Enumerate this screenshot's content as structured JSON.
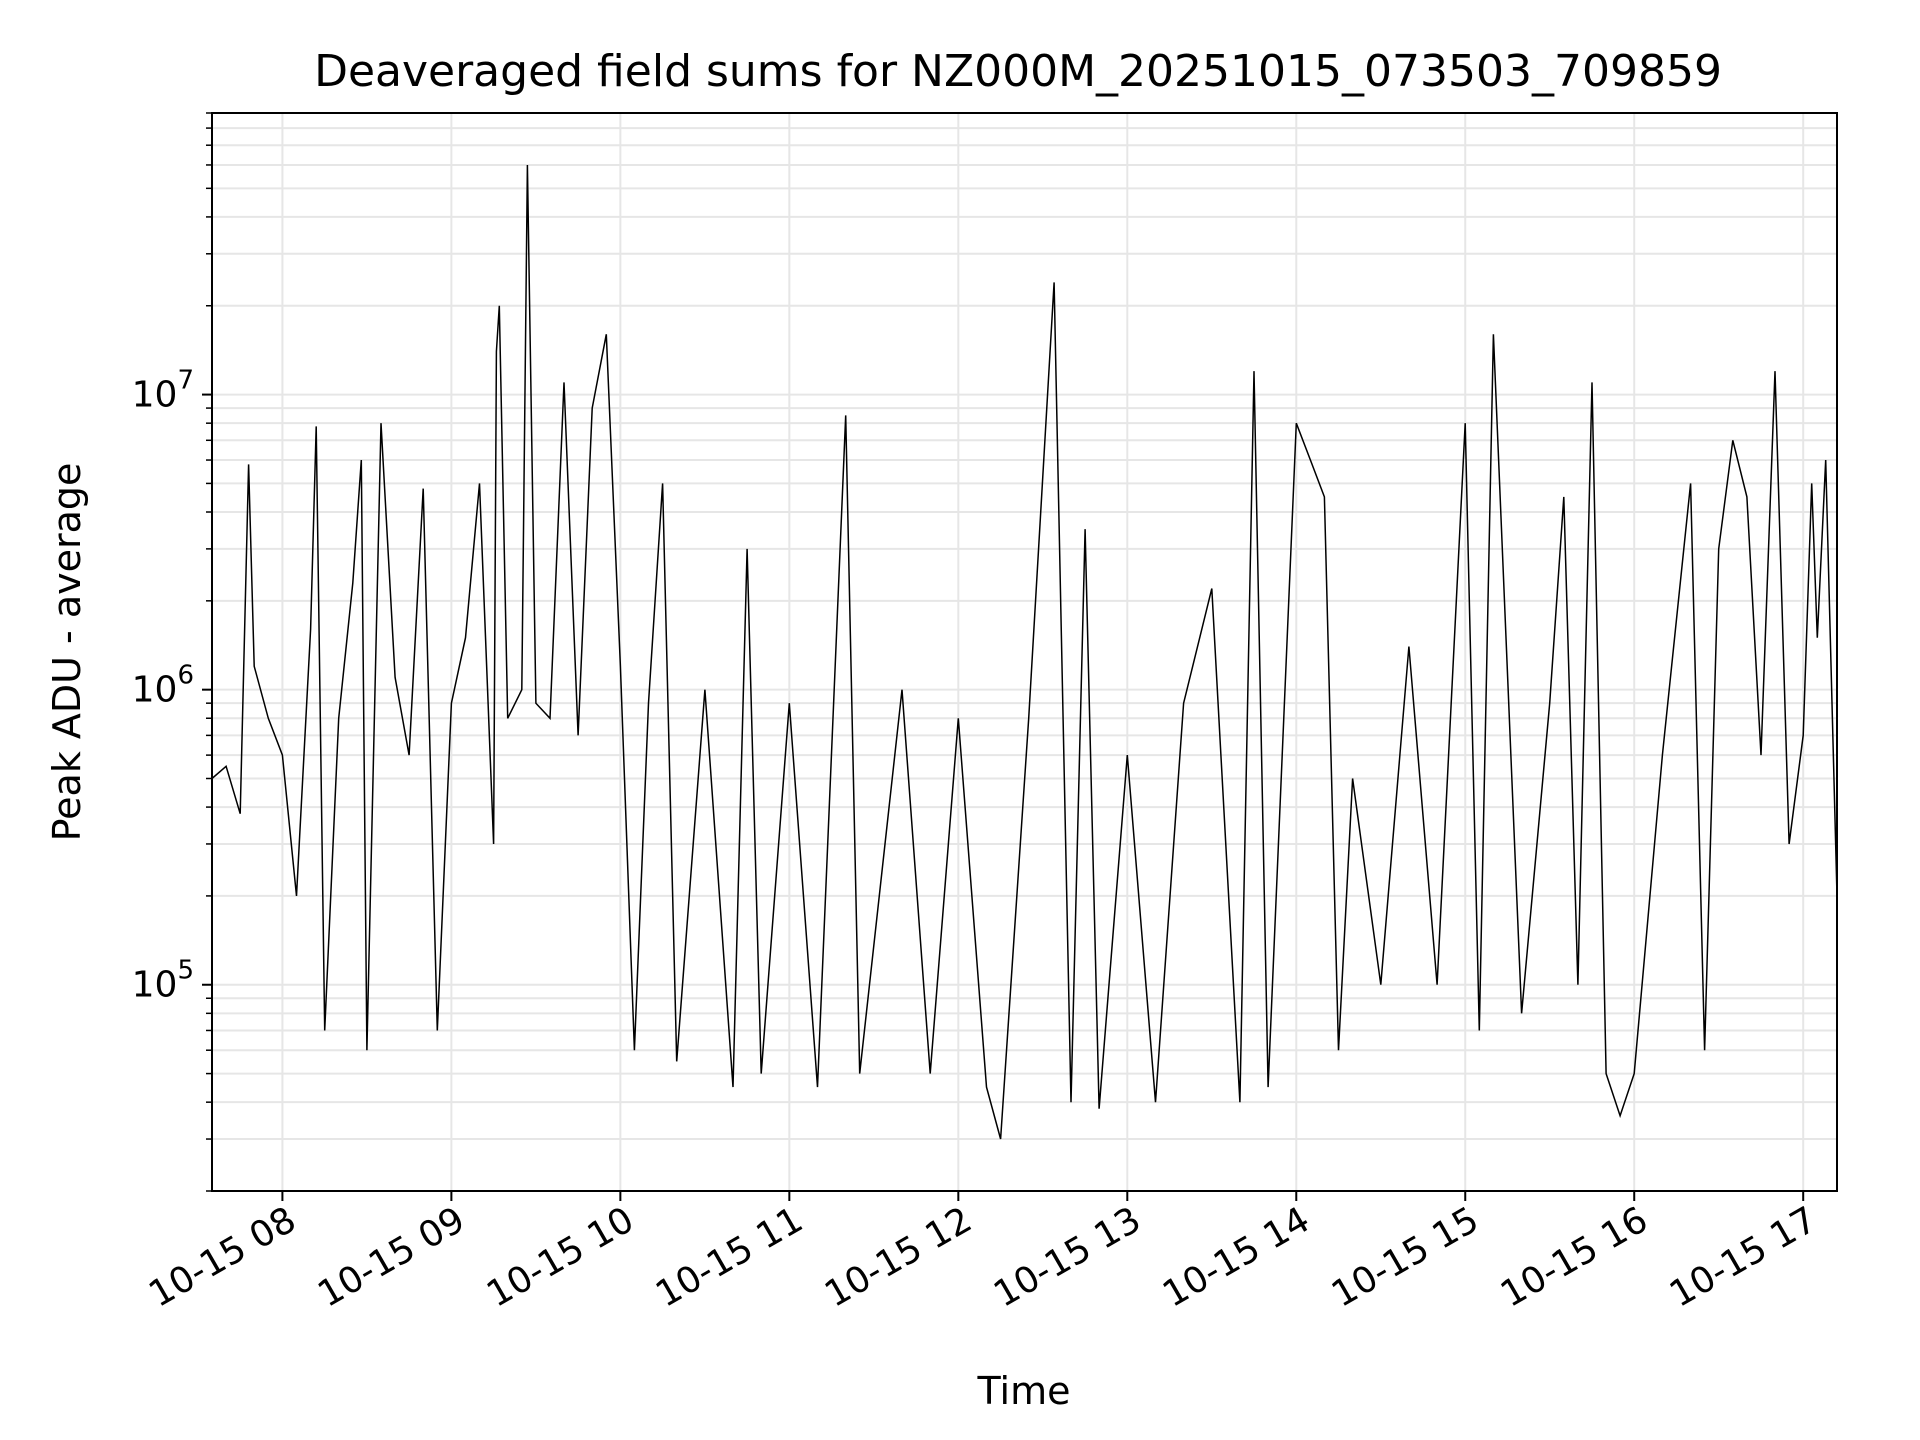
{
  "chart_data": {
    "type": "line",
    "title": "Deaveraged field sums for NZ000M_20251015_073503_709859",
    "xlabel": "Time",
    "ylabel": "Peak ADU - average",
    "yscale": "log",
    "grid": true,
    "line_color": "#000000",
    "grid_color": "#e6e6e6",
    "xlim": [
      "2025-10-15 07:35",
      "2025-10-15 17:12"
    ],
    "ylim": [
      20000,
      90000000
    ],
    "x_ticks": [
      {
        "value": "2025-10-15 08:00",
        "label": "10-15 08"
      },
      {
        "value": "2025-10-15 09:00",
        "label": "10-15 09"
      },
      {
        "value": "2025-10-15 10:00",
        "label": "10-15 10"
      },
      {
        "value": "2025-10-15 11:00",
        "label": "10-15 11"
      },
      {
        "value": "2025-10-15 12:00",
        "label": "10-15 12"
      },
      {
        "value": "2025-10-15 13:00",
        "label": "10-15 13"
      },
      {
        "value": "2025-10-15 14:00",
        "label": "10-15 14"
      },
      {
        "value": "2025-10-15 15:00",
        "label": "10-15 15"
      },
      {
        "value": "2025-10-15 16:00",
        "label": "10-15 16"
      },
      {
        "value": "2025-10-15 17:00",
        "label": "10-15 17"
      }
    ],
    "y_ticks": [
      {
        "value": 100000,
        "base": "10",
        "exp": "5"
      },
      {
        "value": 1000000,
        "base": "10",
        "exp": "6"
      },
      {
        "value": 10000000,
        "base": "10",
        "exp": "7"
      }
    ],
    "series": [
      {
        "points": [
          [
            "2025-10-15 07:35",
            500000
          ],
          [
            "2025-10-15 07:40",
            550000
          ],
          [
            "2025-10-15 07:45",
            380000
          ],
          [
            "2025-10-15 07:48",
            5800000
          ],
          [
            "2025-10-15 07:50",
            1200000
          ],
          [
            "2025-10-15 07:55",
            800000
          ],
          [
            "2025-10-15 08:00",
            600000
          ],
          [
            "2025-10-15 08:05",
            200000
          ],
          [
            "2025-10-15 08:10",
            1600000
          ],
          [
            "2025-10-15 08:12",
            7800000
          ],
          [
            "2025-10-15 08:15",
            70000
          ],
          [
            "2025-10-15 08:20",
            800000
          ],
          [
            "2025-10-15 08:25",
            2300000
          ],
          [
            "2025-10-15 08:28",
            6000000
          ],
          [
            "2025-10-15 08:30",
            60000
          ],
          [
            "2025-10-15 08:35",
            8000000
          ],
          [
            "2025-10-15 08:40",
            1100000
          ],
          [
            "2025-10-15 08:45",
            600000
          ],
          [
            "2025-10-15 08:50",
            4800000
          ],
          [
            "2025-10-15 08:55",
            70000
          ],
          [
            "2025-10-15 09:00",
            900000
          ],
          [
            "2025-10-15 09:05",
            1500000
          ],
          [
            "2025-10-15 09:10",
            5000000
          ],
          [
            "2025-10-15 09:15",
            300000
          ],
          [
            "2025-10-15 09:16",
            14000000
          ],
          [
            "2025-10-15 09:17",
            20000000
          ],
          [
            "2025-10-15 09:20",
            800000
          ],
          [
            "2025-10-15 09:25",
            1000000
          ],
          [
            "2025-10-15 09:27",
            60000000
          ],
          [
            "2025-10-15 09:30",
            900000
          ],
          [
            "2025-10-15 09:35",
            800000
          ],
          [
            "2025-10-15 09:40",
            11000000
          ],
          [
            "2025-10-15 09:45",
            700000
          ],
          [
            "2025-10-15 09:50",
            9000000
          ],
          [
            "2025-10-15 09:55",
            16000000
          ],
          [
            "2025-10-15 10:00",
            1200000
          ],
          [
            "2025-10-15 10:05",
            60000
          ],
          [
            "2025-10-15 10:10",
            900000
          ],
          [
            "2025-10-15 10:15",
            5000000
          ],
          [
            "2025-10-15 10:20",
            55000
          ],
          [
            "2025-10-15 10:30",
            1000000
          ],
          [
            "2025-10-15 10:40",
            45000
          ],
          [
            "2025-10-15 10:45",
            3000000
          ],
          [
            "2025-10-15 10:50",
            50000
          ],
          [
            "2025-10-15 11:00",
            900000
          ],
          [
            "2025-10-15 11:10",
            45000
          ],
          [
            "2025-10-15 11:20",
            8500000
          ],
          [
            "2025-10-15 11:25",
            50000
          ],
          [
            "2025-10-15 11:40",
            1000000
          ],
          [
            "2025-10-15 11:50",
            50000
          ],
          [
            "2025-10-15 12:00",
            800000
          ],
          [
            "2025-10-15 12:10",
            45000
          ],
          [
            "2025-10-15 12:15",
            30000
          ],
          [
            "2025-10-15 12:25",
            800000
          ],
          [
            "2025-10-15 12:34",
            24000000
          ],
          [
            "2025-10-15 12:40",
            40000
          ],
          [
            "2025-10-15 12:45",
            3500000
          ],
          [
            "2025-10-15 12:50",
            38000
          ],
          [
            "2025-10-15 13:00",
            600000
          ],
          [
            "2025-10-15 13:10",
            40000
          ],
          [
            "2025-10-15 13:20",
            900000
          ],
          [
            "2025-10-15 13:30",
            2200000
          ],
          [
            "2025-10-15 13:40",
            40000
          ],
          [
            "2025-10-15 13:45",
            12000000
          ],
          [
            "2025-10-15 13:50",
            45000
          ],
          [
            "2025-10-15 14:00",
            8000000
          ],
          [
            "2025-10-15 14:05",
            6000000
          ],
          [
            "2025-10-15 14:10",
            4500000
          ],
          [
            "2025-10-15 14:15",
            60000
          ],
          [
            "2025-10-15 14:20",
            500000
          ],
          [
            "2025-10-15 14:30",
            100000
          ],
          [
            "2025-10-15 14:40",
            1400000
          ],
          [
            "2025-10-15 14:50",
            100000
          ],
          [
            "2025-10-15 15:00",
            8000000
          ],
          [
            "2025-10-15 15:05",
            70000
          ],
          [
            "2025-10-15 15:10",
            16000000
          ],
          [
            "2025-10-15 15:20",
            80000
          ],
          [
            "2025-10-15 15:30",
            900000
          ],
          [
            "2025-10-15 15:35",
            4500000
          ],
          [
            "2025-10-15 15:40",
            100000
          ],
          [
            "2025-10-15 15:45",
            11000000
          ],
          [
            "2025-10-15 15:50",
            50000
          ],
          [
            "2025-10-15 15:55",
            36000
          ],
          [
            "2025-10-15 16:00",
            50000
          ],
          [
            "2025-10-15 16:10",
            600000
          ],
          [
            "2025-10-15 16:20",
            5000000
          ],
          [
            "2025-10-15 16:25",
            60000
          ],
          [
            "2025-10-15 16:30",
            3000000
          ],
          [
            "2025-10-15 16:35",
            7000000
          ],
          [
            "2025-10-15 16:40",
            4500000
          ],
          [
            "2025-10-15 16:45",
            600000
          ],
          [
            "2025-10-15 16:50",
            12000000
          ],
          [
            "2025-10-15 16:55",
            300000
          ],
          [
            "2025-10-15 17:00",
            700000
          ],
          [
            "2025-10-15 17:03",
            5000000
          ],
          [
            "2025-10-15 17:05",
            1500000
          ],
          [
            "2025-10-15 17:08",
            6000000
          ],
          [
            "2025-10-15 17:12",
            200000
          ]
        ]
      }
    ]
  }
}
